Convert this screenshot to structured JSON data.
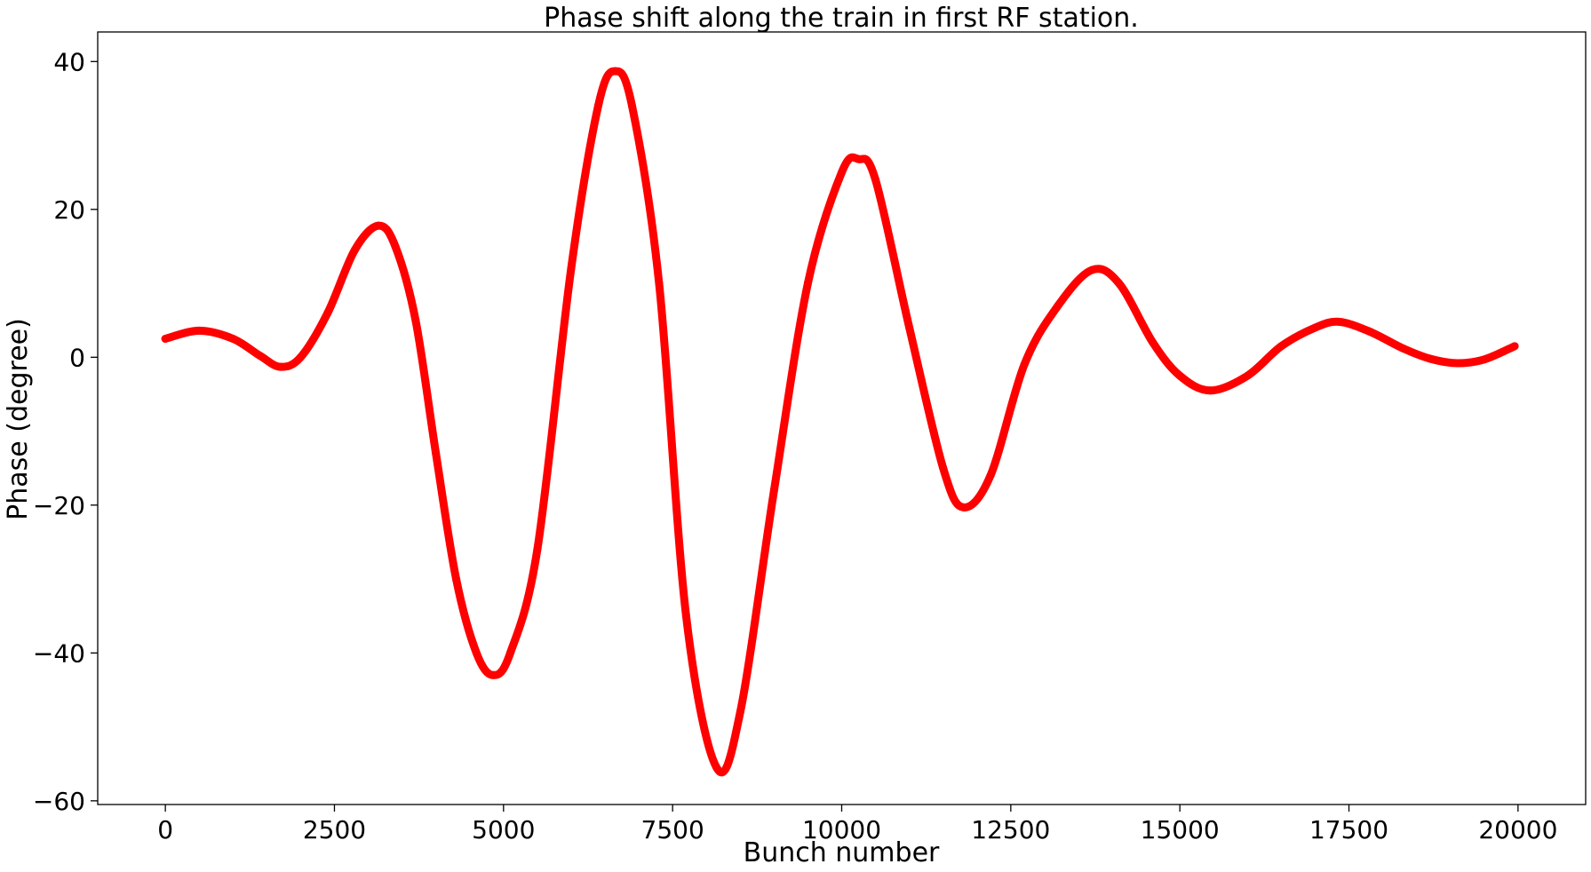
{
  "chart_data": {
    "type": "scatter",
    "title": "Phase shift along the train in first RF station.",
    "xlabel": "Bunch number",
    "ylabel": "Phase (degree)",
    "xlim": [
      -1000,
      21000
    ],
    "ylim": [
      -60.5,
      44
    ],
    "grid": false,
    "legend": "none",
    "xticks": [
      0,
      2500,
      5000,
      7500,
      10000,
      12500,
      15000,
      17500,
      20000
    ],
    "xtick_labels": [
      "0",
      "2500",
      "5000",
      "7500",
      "10000",
      "12500",
      "15000",
      "17500",
      "20000"
    ],
    "yticks": [
      -60,
      -40,
      -20,
      0,
      20,
      40
    ],
    "ytick_labels": [
      "−60",
      "−40",
      "−20",
      "0",
      "20",
      "40"
    ],
    "series": [
      {
        "color": "#ff0000",
        "x": [
          0,
          500,
          1000,
          1400,
          1700,
          2000,
          2400,
          2800,
          3150,
          3400,
          3700,
          4000,
          4300,
          4600,
          4850,
          5100,
          5500,
          6000,
          6400,
          6650,
          6900,
          7300,
          7700,
          8150,
          8500,
          9000,
          9500,
          10000,
          10250,
          10500,
          11000,
          11500,
          11800,
          12200,
          12700,
          13200,
          13700,
          14100,
          14600,
          15000,
          15450,
          16000,
          16500,
          17000,
          17350,
          17800,
          18300,
          18700,
          19100,
          19500,
          19950
        ],
        "y": [
          2.5,
          3.6,
          2.5,
          0.2,
          -1.3,
          0.0,
          6.0,
          14.5,
          17.8,
          15.0,
          5.0,
          -13.0,
          -30.0,
          -40.0,
          -43.0,
          -40.0,
          -26.0,
          12.0,
          34.0,
          38.7,
          34.0,
          10.0,
          -35.0,
          -55.5,
          -48.0,
          -18.0,
          10.0,
          25.0,
          26.8,
          24.0,
          4.0,
          -15.0,
          -20.3,
          -16.0,
          -1.0,
          7.0,
          11.8,
          10.0,
          2.0,
          -2.5,
          -4.5,
          -2.5,
          1.5,
          4.0,
          4.8,
          3.5,
          1.2,
          -0.2,
          -0.8,
          -0.3,
          1.5
        ]
      }
    ]
  }
}
